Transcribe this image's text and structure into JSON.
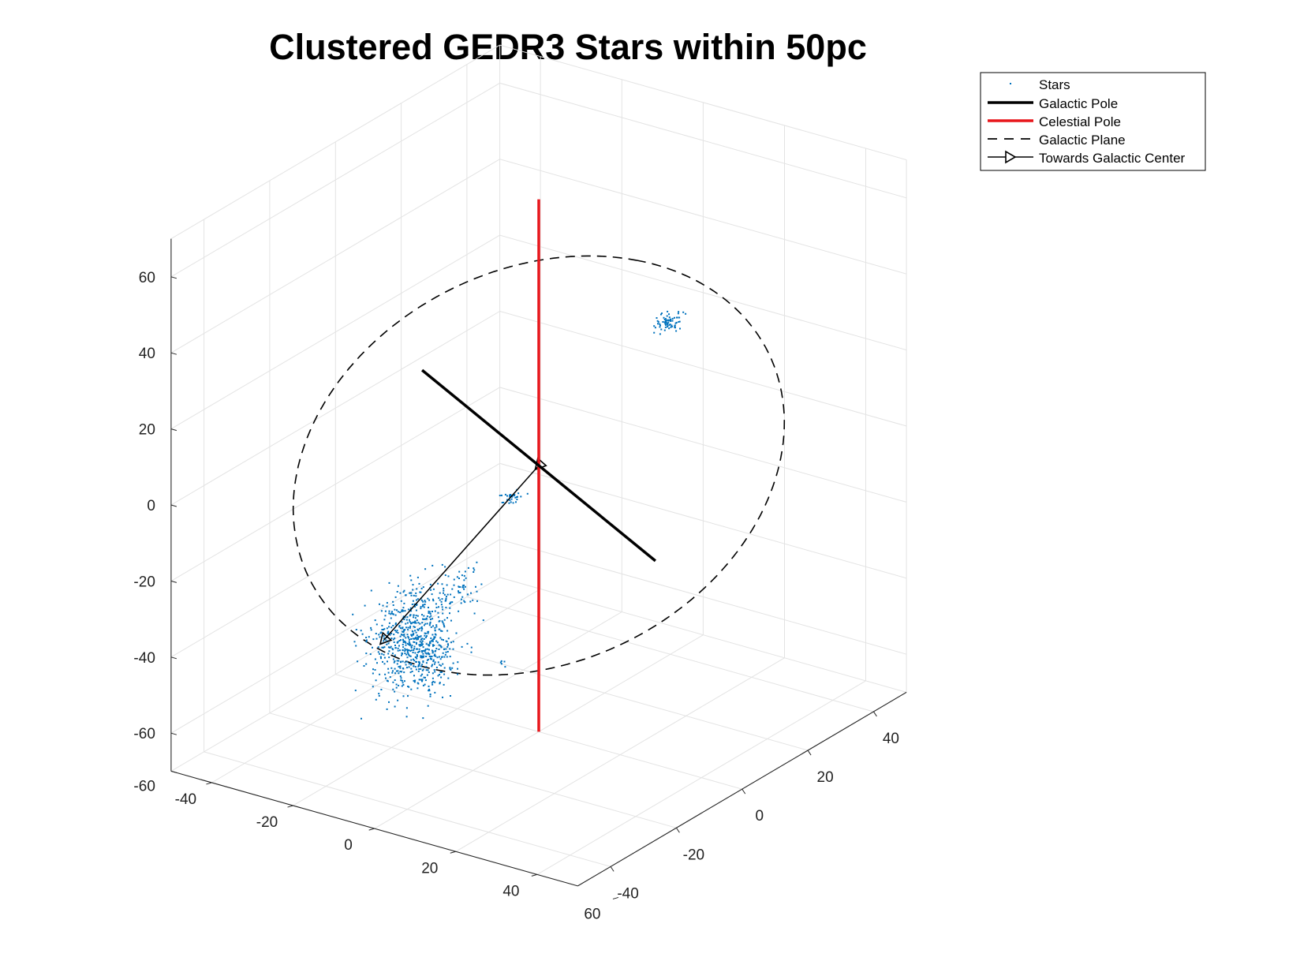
{
  "chart_data": {
    "type": "scatter",
    "title": "Clustered GEDR3 Stars within 50pc",
    "xlabel": "",
    "ylabel": "",
    "zlabel": "",
    "xlim": [
      -50,
      50
    ],
    "ylim": [
      -50,
      50
    ],
    "zlim": [
      -60,
      65
    ],
    "grid": true,
    "legend_position": "top-right (outside axes)",
    "axis_ticks": {
      "y_left_diagonal": [
        "-40",
        "-20",
        "0",
        "20",
        "40",
        "60"
      ],
      "x_right_diagonal": [
        "-40",
        "-20",
        "0",
        "20",
        "40"
      ],
      "z_vertical": [
        "-60",
        "-60",
        "-40",
        "-20",
        "0",
        "20",
        "40",
        "60"
      ]
    },
    "colors": {
      "stars": "#0072BD",
      "galactic_pole": "#000000",
      "celestial_pole": "#E8161B",
      "galactic_plane": "#000000",
      "towards_galactic_center": "#000000"
    },
    "legend": [
      {
        "label": "Stars",
        "style": "dot"
      },
      {
        "label": "Galactic Pole",
        "style": "thick-solid"
      },
      {
        "label": "Celestial Pole",
        "style": "thick-solid-red"
      },
      {
        "label": "Galactic Plane",
        "style": "dashed"
      },
      {
        "label": "Towards Galactic Center",
        "style": "solid-triangle"
      }
    ],
    "series": [
      {
        "name": "Galactic Pole",
        "kind": "line3d",
        "points": [
          [
            -6.8,
            43.9,
            -49.5
          ],
          [
            6.8,
            -43.9,
            49.5
          ]
        ]
      },
      {
        "name": "Celestial Pole",
        "kind": "line3d",
        "points": [
          [
            0,
            0,
            -70
          ],
          [
            0,
            0,
            70
          ]
        ]
      },
      {
        "name": "Galactic Plane",
        "kind": "circle3d",
        "center": [
          0,
          0,
          0
        ],
        "radius": 50,
        "normal": [
          -0.0999,
          0.6645,
          -0.7392
        ]
      },
      {
        "name": "Towards Galactic Center",
        "kind": "line3d",
        "points": [
          [
            0,
            0,
            0
          ],
          [
            -2.7,
            -43.8,
            -24.4
          ]
        ],
        "marker": "triangle-at-both-ends"
      },
      {
        "name": "Stars",
        "kind": "scatter-clusters",
        "clusters": [
          {
            "center": [
              -4,
              -34,
              -26
            ],
            "spread": [
              3,
              6,
              5
            ],
            "count": 450
          },
          {
            "center": [
              0,
              -36,
              -33
            ],
            "spread": [
              3,
              5,
              4
            ],
            "count": 300
          },
          {
            "center": [
              3,
              -26,
              -17
            ],
            "spread": [
              2,
              2.5,
              2
            ],
            "count": 40
          },
          {
            "center": [
              9,
              -20,
              5
            ],
            "spread": [
              1.2,
              1.5,
              0.6
            ],
            "count": 30
          },
          {
            "center": [
              -2,
              42,
              16
            ],
            "spread": [
              1.2,
              1.5,
              0.8
            ],
            "count": 70
          },
          {
            "center": [
              2,
              -14,
              -44
            ],
            "spread": [
              0.4,
              0.5,
              0.4
            ],
            "count": 5
          }
        ]
      }
    ]
  }
}
